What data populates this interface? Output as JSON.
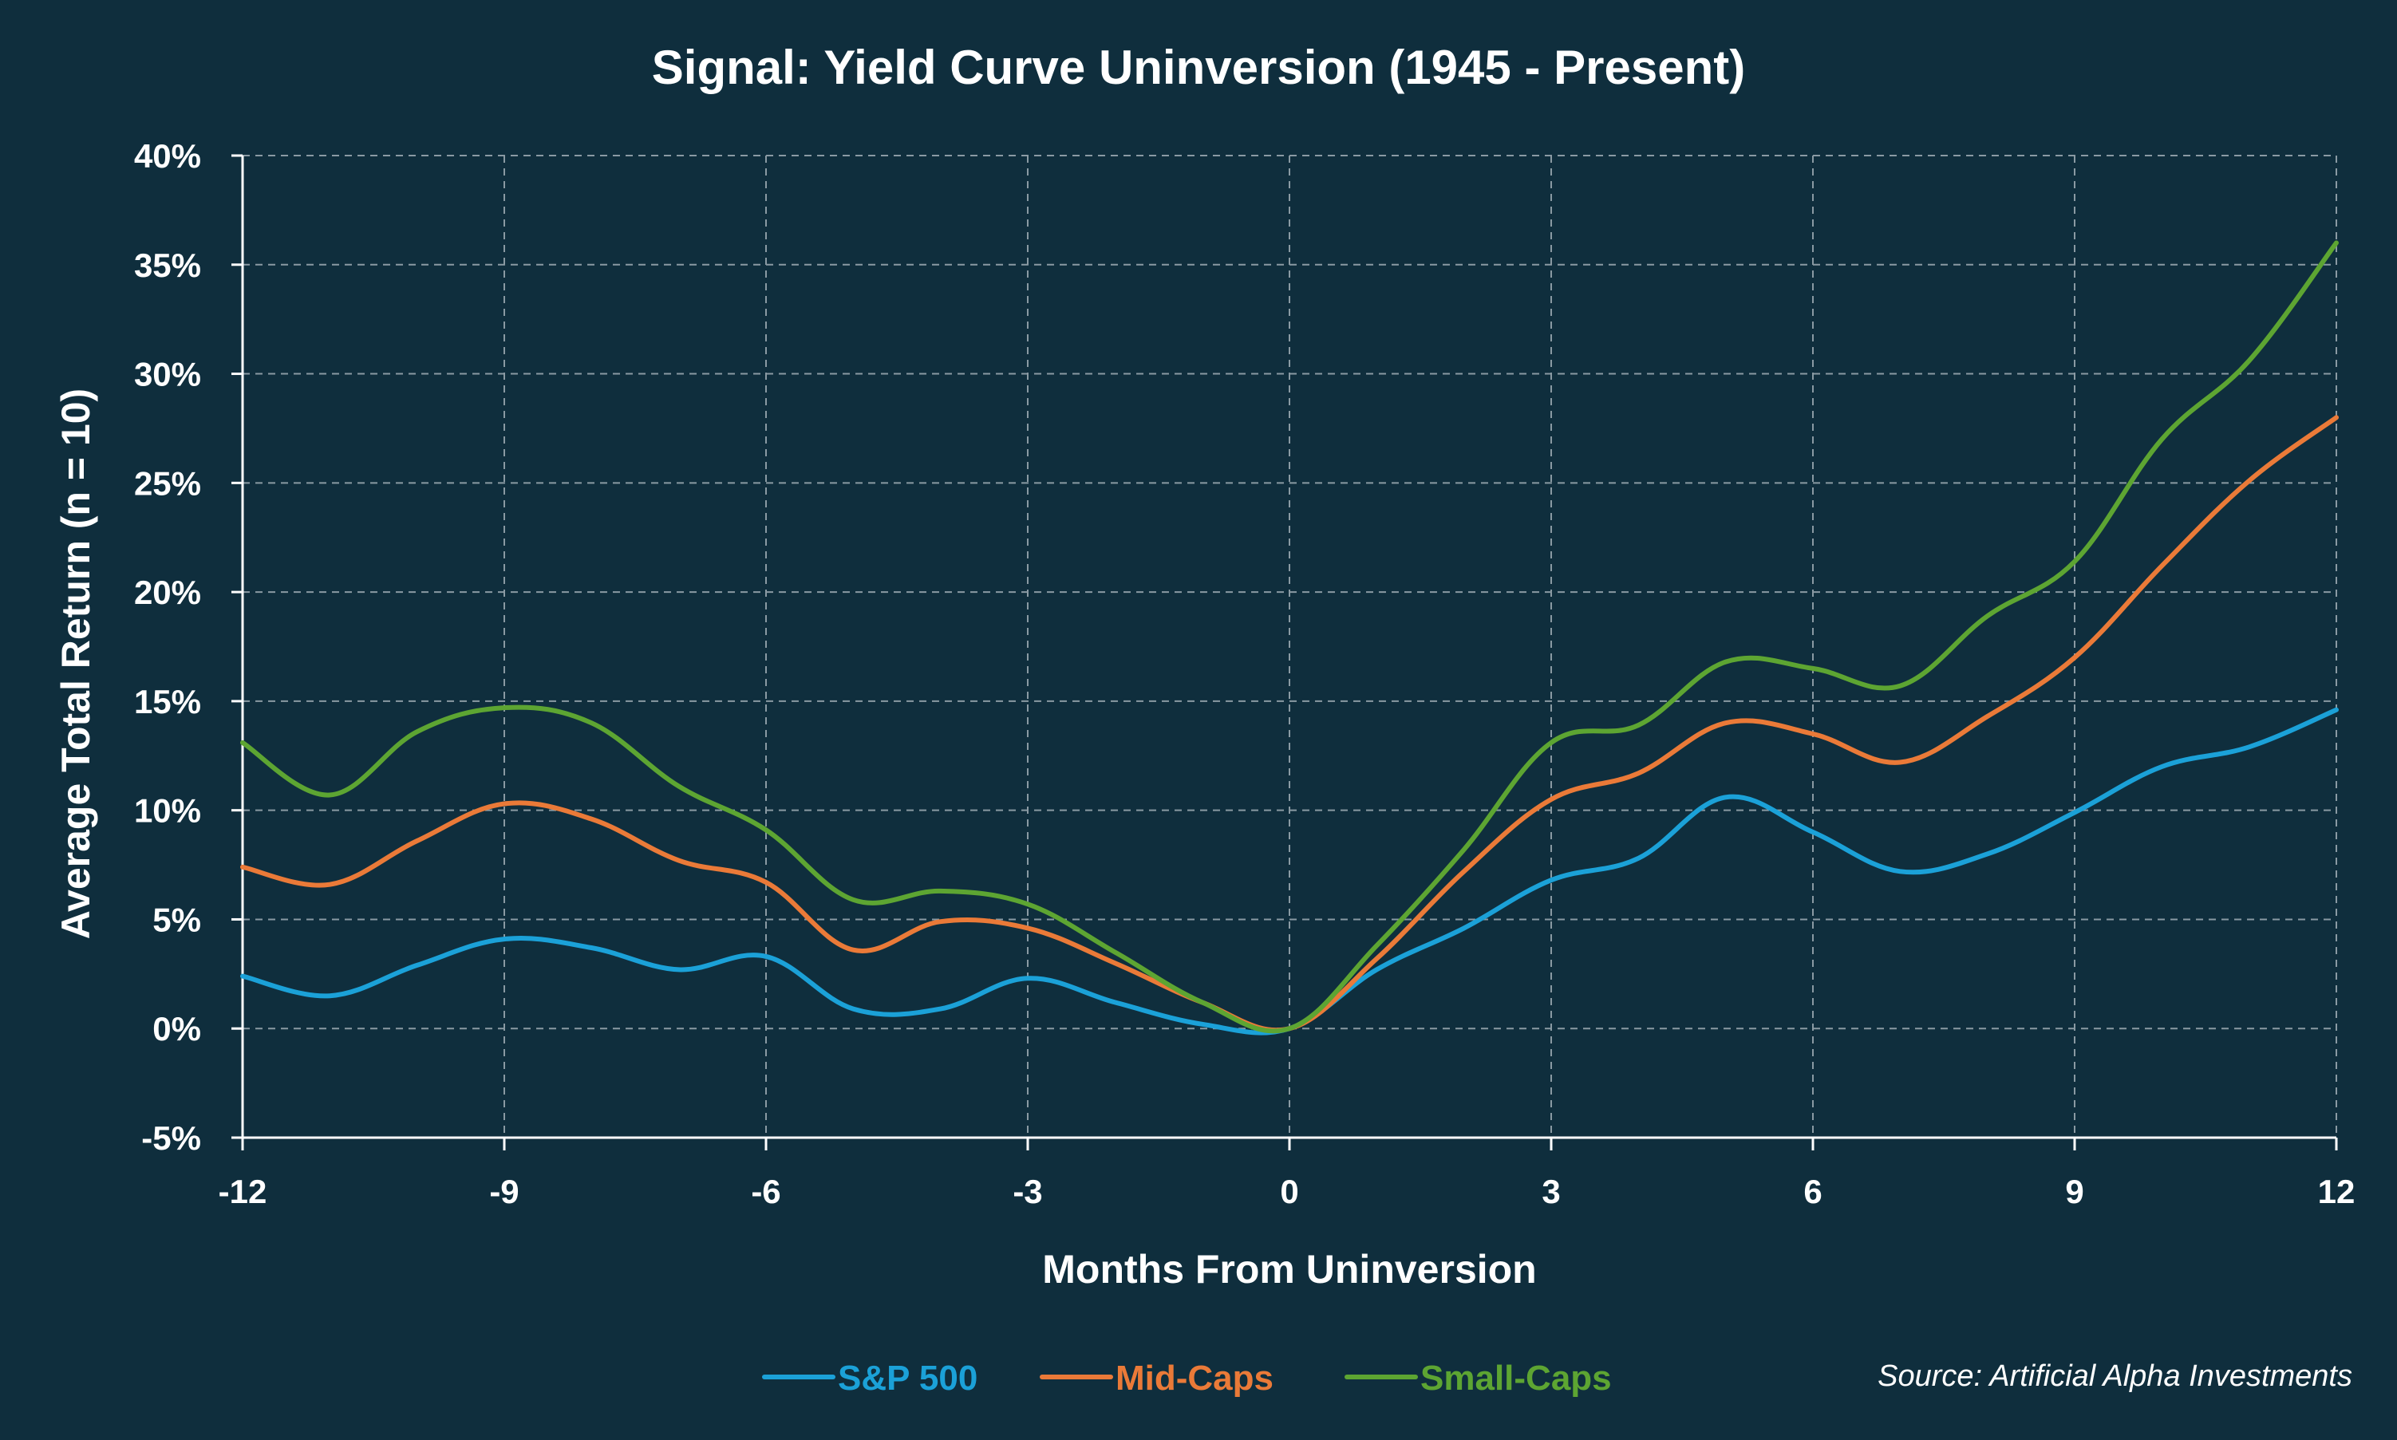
{
  "chart_data": {
    "type": "line",
    "title": "Signal: Yield Curve Uninversion (1945 - Present)",
    "xlabel": "Months From Uninversion",
    "ylabel": "Average Total Return (n = 10)",
    "xlim": [
      -12,
      12
    ],
    "ylim": [
      -5,
      40
    ],
    "x_ticks": [
      -12,
      -9,
      -6,
      -3,
      0,
      3,
      6,
      9,
      12
    ],
    "y_ticks": [
      -5,
      0,
      5,
      10,
      15,
      20,
      25,
      30,
      35,
      40
    ],
    "x_tick_labels": [
      "-12",
      "-9",
      "-6",
      "-3",
      "0",
      "3",
      "6",
      "9",
      "12"
    ],
    "y_tick_labels": [
      "-5%",
      "0%",
      "5%",
      "10%",
      "15%",
      "20%",
      "25%",
      "30%",
      "35%",
      "40%"
    ],
    "grid": true,
    "legend_position": "bottom-center",
    "x": [
      -12,
      -11,
      -10,
      -9,
      -8,
      -7,
      -6,
      -5,
      -4,
      -3,
      -2,
      -1,
      0,
      1,
      2,
      3,
      4,
      5,
      6,
      7,
      8,
      9,
      10,
      11,
      12
    ],
    "series": [
      {
        "name": "S&P 500",
        "color": "#1ba1d8",
        "values": [
          2.4,
          1.5,
          2.9,
          4.1,
          3.7,
          2.7,
          3.3,
          0.9,
          0.9,
          2.3,
          1.2,
          0.2,
          0.0,
          2.7,
          4.6,
          6.8,
          7.8,
          10.6,
          9.0,
          7.2,
          8.0,
          9.9,
          12.0,
          12.9,
          14.6
        ]
      },
      {
        "name": "Mid-Caps",
        "color": "#ea7a38",
        "values": [
          7.4,
          6.6,
          8.6,
          10.3,
          9.6,
          7.7,
          6.7,
          3.6,
          4.9,
          4.6,
          3.0,
          1.2,
          0.0,
          3.2,
          7.2,
          10.5,
          11.7,
          14.0,
          13.5,
          12.2,
          14.3,
          17.0,
          21.2,
          25.1,
          28.0
        ]
      },
      {
        "name": "Small-Caps",
        "color": "#5da532",
        "values": [
          13.1,
          10.7,
          13.6,
          14.7,
          14.0,
          11.1,
          9.1,
          5.9,
          6.3,
          5.7,
          3.5,
          1.2,
          0.0,
          3.8,
          8.2,
          13.1,
          13.9,
          16.8,
          16.5,
          15.7,
          18.9,
          21.4,
          27.0,
          30.6,
          36.0
        ]
      }
    ],
    "source": "Source: Artificial Alpha Investments",
    "background_color": "#0f2e3d"
  }
}
